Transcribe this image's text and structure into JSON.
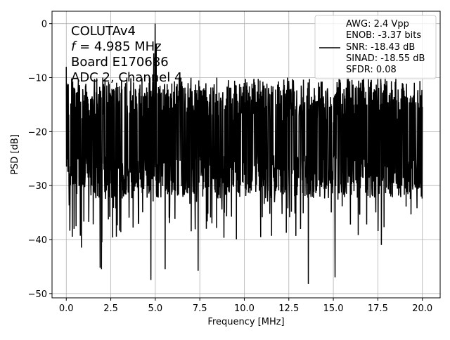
{
  "chart_data": {
    "type": "line",
    "xlabel": "Frequency [MHz]",
    "ylabel": "PSD [dB]",
    "xlim": [
      -0.8,
      21.0
    ],
    "ylim": [
      -50.8,
      2.3
    ],
    "xticks": [
      0.0,
      2.5,
      5.0,
      7.5,
      10.0,
      12.5,
      15.0,
      17.5,
      20.0
    ],
    "xtick_labels": [
      "0.0",
      "2.5",
      "5.0",
      "7.5",
      "10.0",
      "12.5",
      "15.0",
      "17.5",
      "20.0"
    ],
    "yticks": [
      0,
      -10,
      -20,
      -30,
      -40,
      -50
    ],
    "ytick_labels": [
      "0",
      "−10",
      "−20",
      "−30",
      "−40",
      "−50"
    ],
    "grid": true,
    "line_color": "#000000",
    "annotation_lines": [
      "COLUTAv4",
      "f = 4.985 MHz",
      "Board E170686",
      "ADC 2, Channel 4"
    ],
    "legend": {
      "placement": "top-right",
      "lines": [
        "AWG: 2.4 Vpp",
        "ENOB: -3.37 bits",
        "SNR: -18.43 dB",
        "SINAD: -18.55 dB",
        "SFDR: 0.08"
      ]
    },
    "series": [
      {
        "x_start": 0.0,
        "x_end": 20.0,
        "num_points": 1600,
        "baseline_db": -20,
        "typical_high_db": -12,
        "typical_low_db": -30,
        "peak": {
          "x": 4.985,
          "y": 0.0
        },
        "noted_peaks": [
          {
            "x": 4.91,
            "y": -5.5
          },
          {
            "x": 5.05,
            "y": -3.8
          },
          {
            "x": 0.0,
            "y": -8.0
          }
        ],
        "noted_minima": [
          {
            "x": 1.9,
            "y": -45.2
          },
          {
            "x": 1.97,
            "y": -45.5
          },
          {
            "x": 2.0,
            "y": -40.5
          },
          {
            "x": 4.75,
            "y": -47.5
          },
          {
            "x": 5.55,
            "y": -45.5
          },
          {
            "x": 7.4,
            "y": -45.8
          },
          {
            "x": 13.6,
            "y": -48.2
          },
          {
            "x": 15.1,
            "y": -47.0
          },
          {
            "x": 0.85,
            "y": -41.5
          },
          {
            "x": 17.7,
            "y": -41.0
          }
        ]
      }
    ]
  }
}
